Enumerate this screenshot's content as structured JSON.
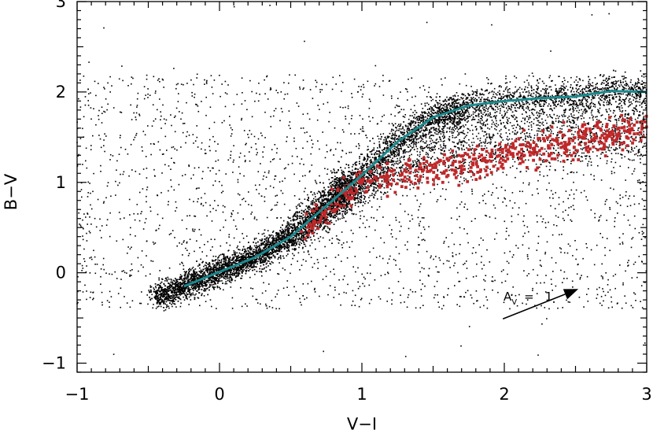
{
  "chart_data": {
    "type": "scatter",
    "xlabel": "V−I",
    "ylabel": "B−V",
    "xlim": [
      -1,
      3
    ],
    "ylim": [
      -1.1,
      3
    ],
    "x_major_ticks": [
      -1,
      0,
      1,
      2,
      3
    ],
    "y_major_ticks": [
      -1,
      0,
      1,
      2,
      3
    ],
    "x_tick_labels": [
      "−1",
      "0",
      "1",
      "2",
      "3"
    ],
    "y_tick_labels": [
      "−1",
      "0",
      "1",
      "2",
      "3"
    ],
    "grid": false,
    "legend": "none",
    "colors": {
      "black_points": "#000000",
      "red_points": "#c0282a",
      "locus_line": "#1b8a8e"
    },
    "series": [
      {
        "kind": "line",
        "x": [
          -0.25,
          0.0,
          0.25,
          0.5,
          0.75,
          1.0,
          1.25,
          1.5,
          1.75,
          2.0,
          2.25,
          2.5,
          2.75,
          3.0
        ],
        "y": [
          -0.15,
          0.01,
          0.17,
          0.4,
          0.74,
          1.08,
          1.45,
          1.72,
          1.85,
          1.9,
          1.93,
          1.95,
          2.01,
          2.0
        ]
      }
    ],
    "annotations": [
      {
        "text": "A",
        "subscript": "V",
        "equals": "=",
        "value": "1",
        "arrow_from": [
          1.99,
          -0.51
        ],
        "arrow_to": [
          2.52,
          -0.18
        ]
      }
    ]
  }
}
